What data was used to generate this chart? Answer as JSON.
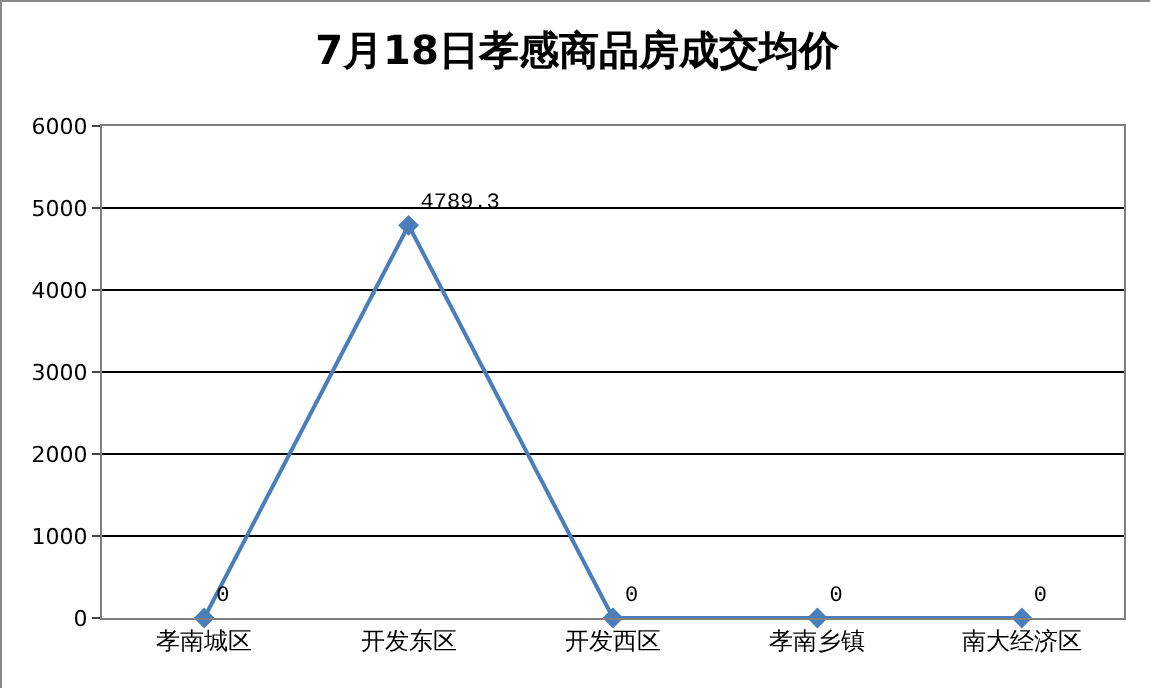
{
  "chart_data": {
    "type": "line",
    "title": "7月18日孝感商品房成交均价",
    "categories": [
      "孝南城区",
      "开发东区",
      "开发西区",
      "孝南乡镇",
      "南大经济区"
    ],
    "series": [
      {
        "color": "#4a7ebb",
        "values": [
          0,
          4789.3,
          0,
          0,
          0
        ]
      }
    ],
    "ylim": [
      0,
      6000
    ],
    "yticks": [
      0,
      1000,
      2000,
      3000,
      4000,
      5000,
      6000
    ],
    "grid": "y",
    "marker": "diamond",
    "line_style": "solid",
    "data_labels": true
  }
}
